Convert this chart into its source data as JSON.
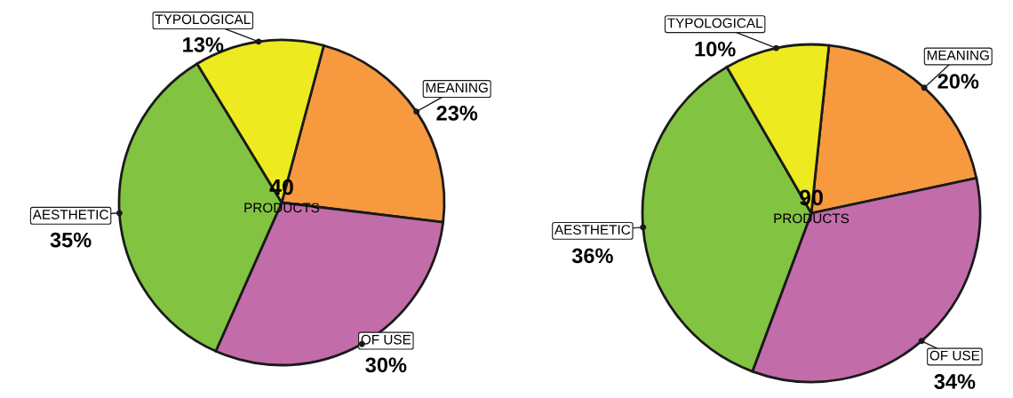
{
  "chart_data": [
    {
      "type": "pie",
      "categories": [
        "MEANING",
        "OF USE",
        "AESTHETIC",
        "TYPOLOGICAL"
      ],
      "values": [
        23,
        30,
        35,
        13
      ],
      "colors": [
        "#f7993f",
        "#c36caa",
        "#82c341",
        "#eeea20"
      ],
      "value_labels": [
        "23%",
        "30%",
        "35%",
        "13%"
      ],
      "annotations": [
        "40",
        "PRODUCTS"
      ]
    },
    {
      "type": "pie",
      "categories": [
        "MEANING",
        "OF USE",
        "AESTHETIC",
        "TYPOLOGICAL"
      ],
      "values": [
        20,
        34,
        36,
        10
      ],
      "colors": [
        "#f7993f",
        "#c36caa",
        "#82c341",
        "#eeea20"
      ],
      "value_labels": [
        "20%",
        "34%",
        "36%",
        "10%"
      ],
      "annotations": [
        "90",
        "PRODUCTS"
      ]
    }
  ]
}
